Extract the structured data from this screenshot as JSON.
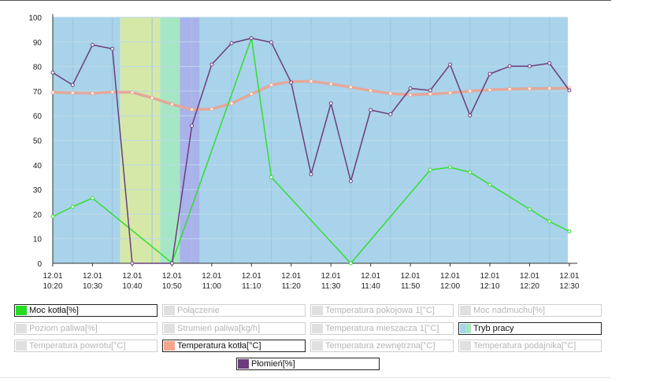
{
  "chart_data": {
    "type": "line",
    "x": [
      "10:20",
      "10:23",
      "10:30",
      "10:33",
      "10:40",
      "10:43",
      "10:47",
      "10:50",
      "10:53",
      "11:00",
      "11:05",
      "11:10",
      "11:15",
      "11:20",
      "11:25",
      "11:30",
      "11:35",
      "11:40",
      "11:45",
      "11:50",
      "11:55",
      "12:00",
      "12:05",
      "12:10",
      "12:15",
      "12:20",
      "12:25",
      "12:30"
    ],
    "ylim": [
      0,
      100
    ],
    "yticks": [
      0,
      10,
      20,
      30,
      40,
      50,
      60,
      70,
      80,
      90,
      100
    ],
    "x_ticks": [
      {
        "t": "10:20",
        "line1": "12.01",
        "line2": "10:20"
      },
      {
        "t": "10:30",
        "line1": "12.01",
        "line2": "10:30"
      },
      {
        "t": "10:40",
        "line1": "12.01",
        "line2": "10:40"
      },
      {
        "t": "10:50",
        "line1": "12.01",
        "line2": "10:50"
      },
      {
        "t": "11:00",
        "line1": "12.01",
        "line2": "11:00"
      },
      {
        "t": "11:10",
        "line1": "12.01",
        "line2": "11:10"
      },
      {
        "t": "11:20",
        "line1": "12.01",
        "line2": "11:20"
      },
      {
        "t": "11:30",
        "line1": "12.01",
        "line2": "11:30"
      },
      {
        "t": "11:40",
        "line1": "12.01",
        "line2": "11:40"
      },
      {
        "t": "11:50",
        "line1": "12.01",
        "line2": "11:50"
      },
      {
        "t": "12:00",
        "line1": "12.01",
        "line2": "12:00"
      },
      {
        "t": "12:10",
        "line1": "12.01",
        "line2": "12:10"
      },
      {
        "t": "12:20",
        "line1": "12.01",
        "line2": "12:20"
      },
      {
        "t": "12:30",
        "line1": "12.01",
        "line2": "12:30"
      }
    ],
    "x_range": [
      "10:20",
      "12:32"
    ],
    "grid": true,
    "bands": [
      {
        "from": "10:20",
        "to": "10:37",
        "color": "#a9d3ea"
      },
      {
        "from": "10:37",
        "to": "10:47",
        "color": "#d6e8a8"
      },
      {
        "from": "10:47",
        "to": "10:52",
        "color": "#a6e6c4"
      },
      {
        "from": "10:52",
        "to": "10:57",
        "color": "#a9b2ea"
      },
      {
        "from": "10:57",
        "to": "12:31",
        "color": "#a9d3ea"
      }
    ],
    "series": [
      {
        "name": "Temperatura kotła[°C]",
        "color": "#f4a58c",
        "points": [
          [
            "10:20",
            69.5
          ],
          [
            "10:25",
            69.3
          ],
          [
            "10:30",
            69.1
          ],
          [
            "10:35",
            69.6
          ],
          [
            "10:40",
            69.5
          ],
          [
            "10:45",
            67.3
          ],
          [
            "10:50",
            64.6
          ],
          [
            "10:55",
            62.5
          ],
          [
            "11:00",
            62.7
          ],
          [
            "11:05",
            65.0
          ],
          [
            "11:10",
            68.8
          ],
          [
            "11:15",
            72.5
          ],
          [
            "11:20",
            73.9
          ],
          [
            "11:25",
            74.0
          ],
          [
            "11:30",
            72.9
          ],
          [
            "11:35",
            71.6
          ],
          [
            "11:40",
            70.2
          ],
          [
            "11:45",
            69.0
          ],
          [
            "11:50",
            68.5
          ],
          [
            "11:55",
            68.8
          ],
          [
            "12:00",
            69.3
          ],
          [
            "12:05",
            70.0
          ],
          [
            "12:10",
            70.5
          ],
          [
            "12:15",
            70.8
          ],
          [
            "12:20",
            71.0
          ],
          [
            "12:25",
            71.1
          ],
          [
            "12:30",
            71.2
          ]
        ]
      },
      {
        "name": "Moc kotła[%]",
        "color": "#33dd33",
        "points": [
          [
            "10:20",
            19
          ],
          [
            "10:25",
            23
          ],
          [
            "10:30",
            26.5
          ],
          [
            "10:50",
            0.2
          ],
          [
            "11:10",
            91.5
          ],
          [
            "11:15",
            35
          ],
          [
            "11:35",
            0
          ],
          [
            "11:55",
            38
          ],
          [
            "12:00",
            39
          ],
          [
            "12:05",
            37
          ],
          [
            "12:10",
            32
          ],
          [
            "12:20",
            22
          ],
          [
            "12:25",
            17
          ],
          [
            "12:30",
            13
          ]
        ]
      },
      {
        "name": "Płomień[%]",
        "color": "#6b3d7d",
        "points": [
          [
            "10:20",
            77.5
          ],
          [
            "10:25",
            72.5
          ],
          [
            "10:30",
            88.8
          ],
          [
            "10:35",
            87.2
          ],
          [
            "10:40",
            0
          ],
          [
            "10:50",
            0
          ],
          [
            "10:55",
            55.9
          ],
          [
            "11:00",
            80.8
          ],
          [
            "11:05",
            89.5
          ],
          [
            "11:10",
            91.5
          ],
          [
            "11:15",
            89.8
          ],
          [
            "11:20",
            73.5
          ],
          [
            "11:25",
            36.2
          ],
          [
            "11:30",
            65
          ],
          [
            "11:35",
            33.4
          ],
          [
            "11:40",
            62.3
          ],
          [
            "11:45",
            60.6
          ],
          [
            "11:50",
            71.1
          ],
          [
            "11:55",
            70.3
          ],
          [
            "12:00",
            80.8
          ],
          [
            "12:05",
            60.1
          ],
          [
            "12:10",
            77
          ],
          [
            "12:15",
            80.1
          ],
          [
            "12:20",
            80.1
          ],
          [
            "12:25",
            81.3
          ],
          [
            "12:30",
            70.3
          ]
        ]
      }
    ],
    "legend_position": "bottom"
  },
  "legend": [
    {
      "label": "Moc kotła[%]",
      "active": true,
      "color": "#22dd22"
    },
    {
      "label": "Połączenie",
      "active": false,
      "color": "#e0e0e0"
    },
    {
      "label": "Temperatura pokojowa 1[°C]",
      "active": false,
      "color": "#e0e0e0"
    },
    {
      "label": "Moc nadmuchu[%]",
      "active": false,
      "color": "#e0e0e0"
    },
    {
      "label": "Poziom paliwa[%]",
      "active": false,
      "color": "#e0e0e0"
    },
    {
      "label": "Strumień paliwa[kg/h]",
      "active": false,
      "color": "#e0e0e0"
    },
    {
      "label": "Temperatura mieszacza 1[°C]",
      "active": false,
      "color": "#e0e0e0"
    },
    {
      "label": "Tryb pracy",
      "active": true,
      "color": "#a9d3ea",
      "color2": "#a6e6c4"
    },
    {
      "label": "Temperatura powrotu[°C]",
      "active": false,
      "color": "#e0e0e0"
    },
    {
      "label": "Temperatura kotła[°C]",
      "active": true,
      "color": "#f4a58c"
    },
    {
      "label": "Temperatura zewnętrzna[°C]",
      "active": false,
      "color": "#e0e0e0"
    },
    {
      "label": "Temperatura podajnika[°C]",
      "active": false,
      "color": "#e0e0e0"
    },
    {
      "label": "Płomień[%]",
      "active": true,
      "color": "#6b3d7d"
    }
  ]
}
